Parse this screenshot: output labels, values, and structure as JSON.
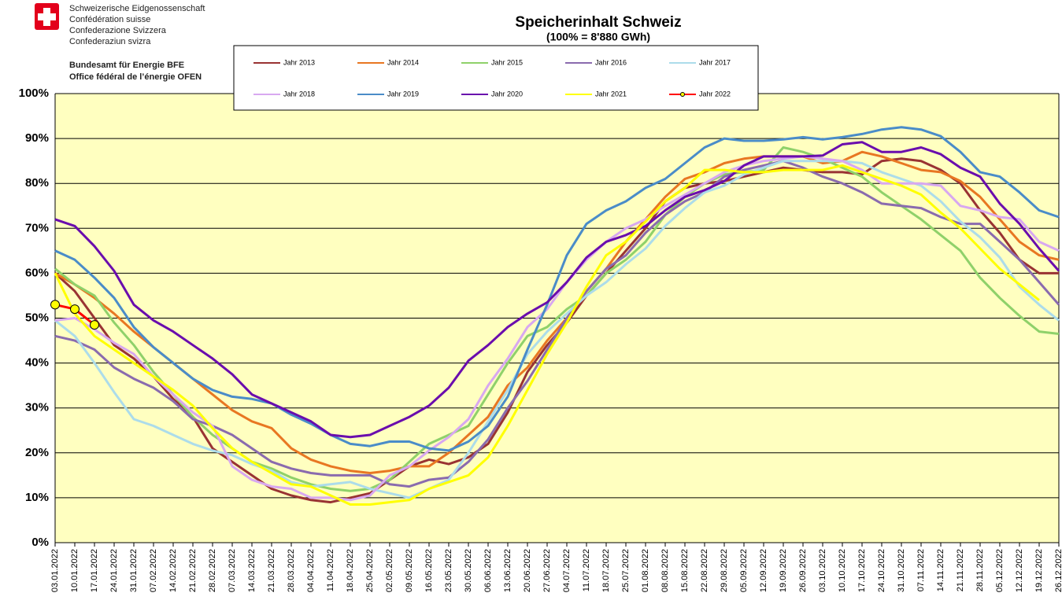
{
  "header": {
    "lines": [
      "Schweizerische Eidgenossenschaft",
      "Confédération suisse",
      "Confederazione Svizzera",
      "Confederaziun svizra"
    ],
    "office": [
      "Bundesamt für Energie BFE",
      "Office fédéral de l’énergie OFEN"
    ]
  },
  "chart_data": {
    "type": "line",
    "title": "Speicherinhalt Schweiz",
    "subtitle": "(100% = 8'880 GWh)",
    "categories": [
      "03.01.2022",
      "10.01.2022",
      "17.01.2022",
      "24.01.2022",
      "31.01.2022",
      "07.02.2022",
      "14.02.2022",
      "21.02.2022",
      "28.02.2022",
      "07.03.2022",
      "14.03.2022",
      "21.03.2022",
      "28.03.2022",
      "04.04.2022",
      "11.04.2022",
      "18.04.2022",
      "25.04.2022",
      "02.05.2022",
      "09.05.2022",
      "16.05.2022",
      "23.05.2022",
      "30.05.2022",
      "06.06.2022",
      "13.06.2022",
      "20.06.2022",
      "27.06.2022",
      "04.07.2022",
      "11.07.2022",
      "18.07.2022",
      "25.07.2022",
      "01.08.2022",
      "08.08.2022",
      "15.08.2022",
      "22.08.2022",
      "29.08.2022",
      "05.09.2022",
      "12.09.2022",
      "19.09.2022",
      "26.09.2022",
      "03.10.2022",
      "10.10.2022",
      "17.10.2022",
      "24.10.2022",
      "31.10.2022",
      "07.11.2022",
      "14.11.2022",
      "21.11.2022",
      "28.11.2022",
      "05.12.2022",
      "12.12.2022",
      "19.12.2022",
      "26.12.2022"
    ],
    "ylim": [
      0,
      100
    ],
    "yticks": [
      {
        "value": 0,
        "label": "0%"
      },
      {
        "value": 10,
        "label": "10%"
      },
      {
        "value": 20,
        "label": "20%"
      },
      {
        "value": 30,
        "label": "30%"
      },
      {
        "value": 40,
        "label": "40%"
      },
      {
        "value": 50,
        "label": "50%"
      },
      {
        "value": 60,
        "label": "60%"
      },
      {
        "value": 70,
        "label": "70%"
      },
      {
        "value": 80,
        "label": "80%"
      },
      {
        "value": 90,
        "label": "90%"
      },
      {
        "value": 100,
        "label": "100%"
      }
    ],
    "grid": true,
    "series": [
      {
        "name": "Jahr 2013",
        "color": "#993333",
        "values": [
          60,
          56,
          50,
          44,
          41,
          37,
          32,
          28,
          21,
          18,
          15,
          12,
          10.5,
          9.5,
          9,
          10,
          11,
          14,
          17,
          18.5,
          17.5,
          19,
          22,
          29,
          38,
          44,
          49,
          55,
          60,
          65,
          70,
          76,
          79,
          80,
          80.5,
          81.5,
          82.5,
          83.5,
          83,
          82.5,
          82.5,
          82,
          85,
          85.5,
          85,
          83,
          80,
          74,
          69,
          63,
          60,
          60
        ]
      },
      {
        "name": "Jahr 2014",
        "color": "#e87722",
        "values": [
          60,
          57.5,
          54.5,
          51,
          47,
          43.5,
          40,
          36.5,
          33,
          29.5,
          27,
          25.5,
          21,
          18.5,
          17,
          16,
          15.5,
          16,
          17,
          17,
          20,
          24,
          28,
          35,
          39,
          45,
          50,
          56,
          61,
          67,
          72,
          77,
          81,
          82.5,
          84.5,
          85.5,
          86,
          86,
          86,
          84.5,
          85,
          87,
          86,
          84.5,
          83,
          82.5,
          80.5,
          77,
          72,
          67,
          64,
          63
        ]
      },
      {
        "name": "Jahr 2015",
        "color": "#8fd16a",
        "values": [
          61,
          57.5,
          55,
          49,
          44,
          38,
          33,
          28,
          24,
          21,
          18,
          16.5,
          14.5,
          13,
          12,
          11.5,
          12,
          14,
          18,
          22,
          24,
          26,
          33,
          40,
          46,
          48,
          52,
          55,
          60,
          63,
          67,
          73,
          77,
          80,
          82,
          82.5,
          83,
          88,
          87,
          85.5,
          83.5,
          81.5,
          78,
          75,
          72,
          68.5,
          65,
          59,
          54.5,
          50.5,
          47,
          46.5
        ]
      },
      {
        "name": "Jahr 2016",
        "color": "#8a6bae",
        "values": [
          46,
          45,
          43,
          39,
          36.5,
          34.5,
          31.5,
          27.5,
          26,
          24,
          21,
          18,
          16.5,
          15.5,
          15,
          15,
          15,
          13,
          12.5,
          14,
          14.5,
          18,
          23,
          30,
          36,
          43,
          50,
          56,
          61,
          64,
          69,
          73,
          76,
          78,
          81.5,
          83,
          84,
          85,
          83.5,
          81.5,
          80,
          78,
          75.5,
          75,
          74.5,
          72.5,
          71,
          71,
          67,
          63,
          58,
          53
        ]
      },
      {
        "name": "Jahr 2017",
        "color": "#acdcea",
        "values": [
          49.5,
          46,
          40,
          33.5,
          27.5,
          26,
          24,
          22,
          20.5,
          19.5,
          17.5,
          16,
          13.5,
          12.5,
          13,
          13.5,
          12,
          11,
          10,
          12,
          14,
          20,
          27,
          34,
          42,
          47,
          51,
          55,
          58,
          62,
          65.5,
          70.5,
          74.5,
          78,
          79.5,
          82,
          83.5,
          85,
          85,
          85,
          85,
          84.5,
          82.5,
          81,
          79.5,
          76,
          71.5,
          68,
          63.5,
          57,
          53,
          49.5
        ]
      },
      {
        "name": "Jahr 2018",
        "color": "#d8a8f0",
        "values": [
          49.5,
          50,
          47.5,
          44.5,
          42,
          37,
          33,
          29,
          26,
          17,
          14,
          12.5,
          12,
          10,
          10,
          9.5,
          10.5,
          15,
          17,
          20.5,
          23.5,
          27.5,
          35,
          41,
          48,
          52,
          58,
          63,
          67,
          70,
          72,
          75,
          77.5,
          80,
          82.5,
          84,
          85,
          85.5,
          86,
          85.5,
          85,
          83,
          80,
          80,
          80,
          79.5,
          75,
          74,
          72.5,
          72,
          67,
          65
        ]
      },
      {
        "name": "Jahr 2019",
        "color": "#4a8cc8",
        "values": [
          65,
          63,
          59,
          54.5,
          48,
          43.5,
          40,
          36.5,
          34,
          32.5,
          32,
          31,
          28.5,
          26.5,
          24,
          22,
          21.5,
          22.5,
          22.5,
          21,
          20.5,
          22.5,
          26,
          32.5,
          43,
          53,
          64,
          71,
          74,
          76,
          79,
          81,
          84.5,
          88,
          90,
          89.5,
          89.5,
          89.8,
          90.3,
          89.8,
          90.3,
          91,
          92,
          92.5,
          92,
          90.5,
          87,
          82.5,
          81.5,
          78,
          74,
          72.5
        ]
      },
      {
        "name": "Jahr 2020",
        "color": "#6a0dad",
        "values": [
          72,
          70.5,
          66,
          60.5,
          53,
          49.5,
          47,
          44,
          41,
          37.5,
          33,
          31,
          29,
          27,
          24,
          23.5,
          24,
          26,
          28,
          30.5,
          34.5,
          40.5,
          44,
          48,
          51,
          53.5,
          58,
          63.5,
          67,
          68.5,
          70.5,
          74,
          77,
          78.5,
          80.5,
          84,
          86,
          86,
          86,
          86.2,
          88.7,
          89.2,
          87,
          87,
          88,
          86.5,
          83.5,
          81.5,
          75.5,
          71,
          65.5,
          60.5
        ]
      },
      {
        "name": "Jahr 2021",
        "color": "#ffff00",
        "values": [
          60,
          51,
          46,
          43,
          40,
          37,
          34,
          30.5,
          25.5,
          21,
          18,
          15.5,
          13,
          12.5,
          10.5,
          8.5,
          8.5,
          9,
          9.5,
          12,
          13.5,
          15,
          19,
          26,
          34,
          42,
          49,
          57,
          64,
          67,
          71.5,
          76,
          79,
          83,
          83,
          82.5,
          82.5,
          83,
          83,
          83,
          84,
          82.5,
          81,
          79.5,
          77.5,
          73.5,
          70,
          65.5,
          61,
          57.5,
          54,
          null
        ]
      },
      {
        "name": "Jahr 2022",
        "color": "#ff0000",
        "marker": "#ffff00",
        "values": [
          53,
          52,
          48.5,
          null,
          null,
          null,
          null,
          null,
          null,
          null,
          null,
          null,
          null,
          null,
          null,
          null,
          null,
          null,
          null,
          null,
          null,
          null,
          null,
          null,
          null,
          null,
          null,
          null,
          null,
          null,
          null,
          null,
          null,
          null,
          null,
          null,
          null,
          null,
          null,
          null,
          null,
          null,
          null,
          null,
          null,
          null,
          null,
          null,
          null,
          null,
          null,
          null
        ]
      }
    ]
  }
}
